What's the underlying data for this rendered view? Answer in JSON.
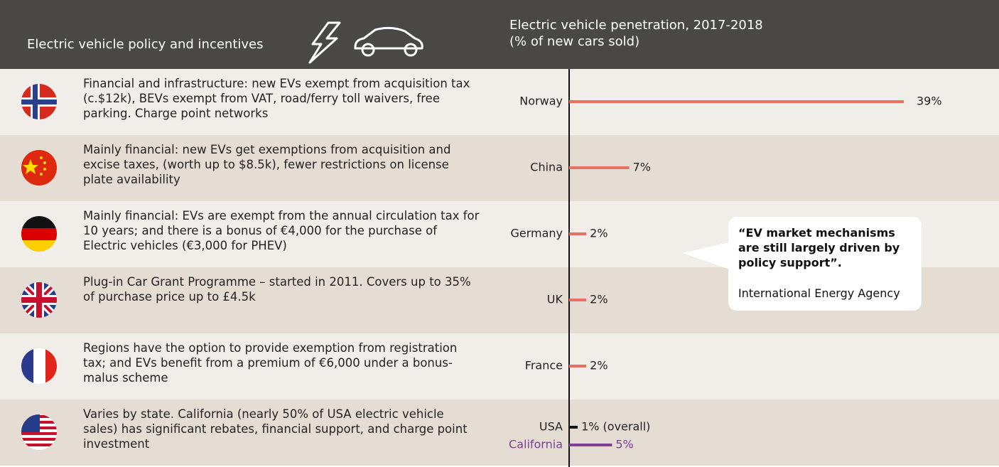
{
  "header": {
    "title": "Electric vehicle policy and incentives"
  },
  "policies": [
    "Financial and infrastructure: new EVs exempt from acquisition tax (c.$12k), BEVs exempt from VAT, road/ferry toll waivers, free parking. Charge point networks",
    "Mainly financial: new EVs get exemptions from acquisition and excise taxes, (worth up to $8.5k), fewer restrictions on license plate availability",
    "Mainly financial: EVs are exempt from the annual circulation tax for 10 years; and there is a bonus of €4,000 for the purchase of Electric vehicles (€3,000 for PHEV)",
    "Plug-in Car Grant Programme – started in 2011. Covers up to 35% of purchase price up to £4.5k",
    "Regions have the option to provide exemption from registration tax; and EVs benefit from a premium of €6,000 under a bonus-malus scheme",
    "Varies by state. California (nearly 50% of USA electric vehicle sales) has significant rebates, financial support, and charge point investment"
  ],
  "quote": {
    "text": "“EV market mechanisms are still largely driven by policy support”.",
    "source": "International Energy Agency"
  },
  "chart_data": {
    "type": "bar",
    "orientation": "horizontal",
    "title": "Electric vehicle penetration, 2017-2018",
    "subtitle": "(% of new cars sold)",
    "categories": [
      "Norway",
      "China",
      "Germany",
      "UK",
      "France",
      "USA",
      "California"
    ],
    "values": [
      39,
      7,
      2,
      2,
      2,
      1,
      5
    ],
    "value_labels": [
      "39%",
      "7%",
      "2%",
      "2%",
      "2%",
      "1% (overall)",
      "5%"
    ],
    "colors": [
      "#e8705f",
      "#e8705f",
      "#e8705f",
      "#e8705f",
      "#e8705f",
      "#111111",
      "#7d3f98"
    ]
  }
}
